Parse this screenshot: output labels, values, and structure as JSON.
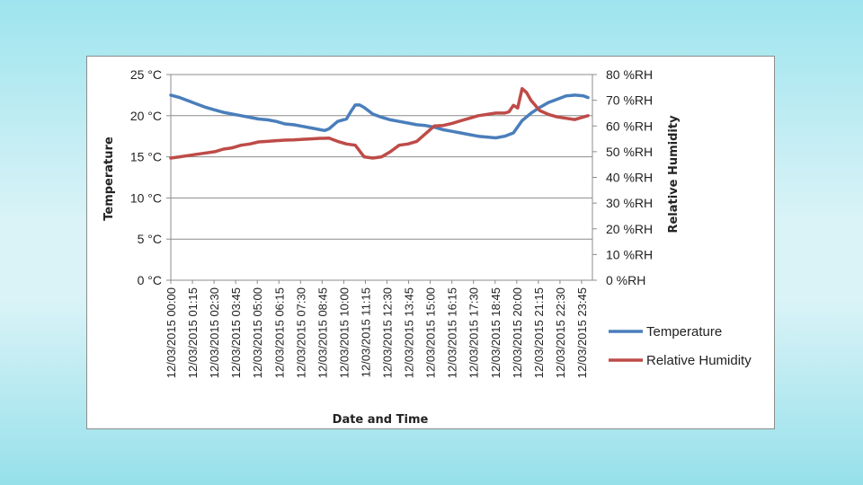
{
  "chart_data": {
    "type": "line",
    "title": "",
    "xlabel": "Date and Time",
    "ylabel_left": "Temperature",
    "ylabel_right": "Relative Humidity",
    "ylim_left": [
      0,
      25
    ],
    "ylim_right": [
      0,
      80
    ],
    "grid": true,
    "legend_position": "right",
    "left_ticks": [
      "0 °C",
      "5 °C",
      "10 °C",
      "15 °C",
      "20 °C",
      "25 °C"
    ],
    "right_ticks": [
      "0 %RH",
      "10 %RH",
      "20 %RH",
      "30 %RH",
      "40 %RH",
      "50 %RH",
      "60 %RH",
      "70 %RH",
      "80 %RH"
    ],
    "x_tick_labels": [
      "12/03/2015 00:00",
      "12/03/2015 01:15",
      "12/03/2015 02:30",
      "12/03/2015 03:45",
      "12/03/2015 05:00",
      "12/03/2015 06:15",
      "12/03/2015 07:30",
      "12/03/2015 08:45",
      "12/03/2015 10:00",
      "12/03/2015 11:15",
      "12/03/2015 12:30",
      "12/03/2015 13:45",
      "12/03/2015 15:00",
      "12/03/2015 16:15",
      "12/03/2015 17:30",
      "12/03/2015 18:45",
      "12/03/2015 20:00",
      "12/03/2015 21:15",
      "12/03/2015 22:30",
      "12/03/2015 23:45"
    ],
    "series": [
      {
        "name": "Temperature",
        "axis": "left",
        "color": "#4a7ebb",
        "x": [
          "00:00",
          "00:30",
          "01:00",
          "01:30",
          "02:00",
          "02:30",
          "03:00",
          "03:30",
          "04:00",
          "04:30",
          "05:00",
          "05:30",
          "06:00",
          "06:30",
          "07:00",
          "07:30",
          "08:00",
          "08:30",
          "08:45",
          "09:00",
          "09:30",
          "10:00",
          "10:15",
          "10:30",
          "10:45",
          "11:00",
          "11:15",
          "11:30",
          "12:00",
          "12:30",
          "13:00",
          "13:30",
          "14:00",
          "14:30",
          "15:00",
          "15:30",
          "16:00",
          "16:30",
          "17:00",
          "17:30",
          "18:00",
          "18:30",
          "19:00",
          "19:30",
          "20:00",
          "20:30",
          "21:00",
          "21:30",
          "22:00",
          "22:30",
          "23:00",
          "23:30",
          "23:45"
        ],
        "values": [
          22.5,
          22.2,
          21.8,
          21.4,
          21.0,
          20.7,
          20.4,
          20.2,
          20.0,
          19.8,
          19.6,
          19.5,
          19.3,
          19.0,
          18.9,
          18.7,
          18.5,
          18.3,
          18.2,
          18.4,
          19.3,
          19.6,
          20.5,
          21.3,
          21.3,
          21.0,
          20.6,
          20.2,
          19.8,
          19.5,
          19.3,
          19.1,
          18.9,
          18.8,
          18.6,
          18.3,
          18.1,
          17.9,
          17.7,
          17.5,
          17.4,
          17.3,
          17.5,
          17.9,
          19.4,
          20.3,
          21.0,
          21.6,
          22.0,
          22.4,
          22.5,
          22.4,
          22.2
        ]
      },
      {
        "name": "Relative Humidity",
        "axis": "right",
        "color": "#be4b48",
        "x": [
          "00:00",
          "00:30",
          "01:00",
          "01:30",
          "02:00",
          "02:30",
          "03:00",
          "03:30",
          "04:00",
          "04:30",
          "05:00",
          "05:30",
          "06:00",
          "06:30",
          "07:00",
          "07:30",
          "08:00",
          "08:30",
          "08:45",
          "09:00",
          "09:30",
          "10:00",
          "10:30",
          "11:00",
          "11:30",
          "12:00",
          "12:30",
          "13:00",
          "13:30",
          "14:00",
          "14:30",
          "15:00",
          "15:30",
          "16:00",
          "16:30",
          "17:00",
          "17:30",
          "18:00",
          "18:30",
          "19:00",
          "19:15",
          "19:30",
          "19:45",
          "20:00",
          "20:15",
          "20:30",
          "21:00",
          "21:30",
          "22:00",
          "22:30",
          "23:00",
          "23:30",
          "23:45"
        ],
        "values": [
          47.5,
          48,
          48.5,
          49,
          49.5,
          50,
          51,
          51.5,
          52.5,
          53,
          53.8,
          54,
          54.3,
          54.5,
          54.6,
          54.8,
          55,
          55.2,
          55.2,
          55.3,
          54,
          53,
          52.5,
          48,
          47.5,
          48,
          50,
          52.5,
          53,
          54,
          57,
          60,
          60.2,
          61,
          62,
          63,
          64,
          64.5,
          65,
          65,
          65.5,
          68,
          67,
          74.5,
          73,
          70,
          66,
          64.5,
          63.5,
          63,
          62.5,
          63.5,
          64
        ]
      }
    ]
  }
}
